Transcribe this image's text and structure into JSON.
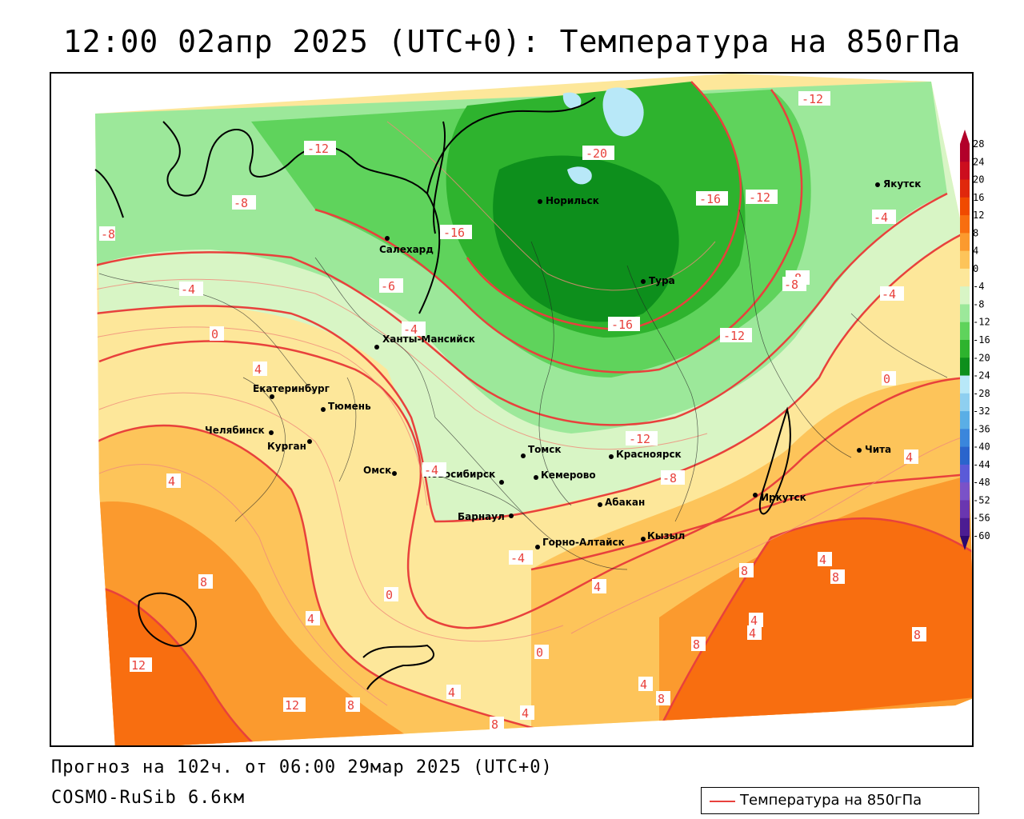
{
  "title": "12:00 02апр 2025 (UTC+0): Температура на 850гПа",
  "forecast_line": "Прогноз на 102ч. от 06:00 29мар 2025 (UTC+0)",
  "model_line": "COSMO-RuSib 6.6км",
  "legend": {
    "label": "Температура на 850гПа",
    "color": "#e8413c"
  },
  "color_scale": {
    "ticks": [
      "28",
      "24",
      "20",
      "16",
      "12",
      "8",
      "4",
      "0",
      "-4",
      "-8",
      "-12",
      "-16",
      "-20",
      "-24",
      "-28",
      "-32",
      "-36",
      "-40",
      "-44",
      "-48",
      "-52",
      "-56",
      "-60"
    ],
    "colors": [
      "#b2002a",
      "#cc0e1e",
      "#e0280c",
      "#f04a00",
      "#f86e10",
      "#fb9a2e",
      "#fdc45a",
      "#fde79a",
      "#d8f5c5",
      "#9ce89a",
      "#5fd35c",
      "#2eb32e",
      "#0d8f1c",
      "#b8e8f8",
      "#8ecff0",
      "#5aaee6",
      "#3a86dc",
      "#2a64cc",
      "#5a5ad8",
      "#7a52c8",
      "#6a36b0",
      "#4c1c92",
      "#2c0870"
    ]
  },
  "cities": [
    {
      "name": "Якутск"
    },
    {
      "name": "Норильск"
    },
    {
      "name": "Салехард"
    },
    {
      "name": "Тура"
    },
    {
      "name": "Ханты-Мансийск"
    },
    {
      "name": "Екатеринбург"
    },
    {
      "name": "Тюмень"
    },
    {
      "name": "Челябинск"
    },
    {
      "name": "Курган"
    },
    {
      "name": "Омск"
    },
    {
      "name": "Новосибирск"
    },
    {
      "name": "Томск"
    },
    {
      "name": "Красноярск"
    },
    {
      "name": "Кемерово"
    },
    {
      "name": "Барнаул"
    },
    {
      "name": "Абакан"
    },
    {
      "name": "Горно-Алтайск"
    },
    {
      "name": "Кызыл"
    },
    {
      "name": "Иркутск"
    },
    {
      "name": "Чита"
    }
  ],
  "isotherm_labels": [
    "-12",
    "-20",
    "-16",
    "-12",
    "-8",
    "-16",
    "-4",
    "-12",
    "-8",
    "-8",
    "-6",
    "-4",
    "-4",
    "-16",
    "-12",
    "-8",
    "-4",
    "0",
    "4",
    "-4",
    "-12",
    "-8",
    "-4",
    "0",
    "4",
    "4",
    "8",
    "12",
    "12",
    "8",
    "0",
    "4",
    "0",
    "4",
    "8",
    "4",
    "8",
    "4",
    "4",
    "4",
    "8",
    "8",
    "8",
    "8",
    "4",
    "4"
  ]
}
